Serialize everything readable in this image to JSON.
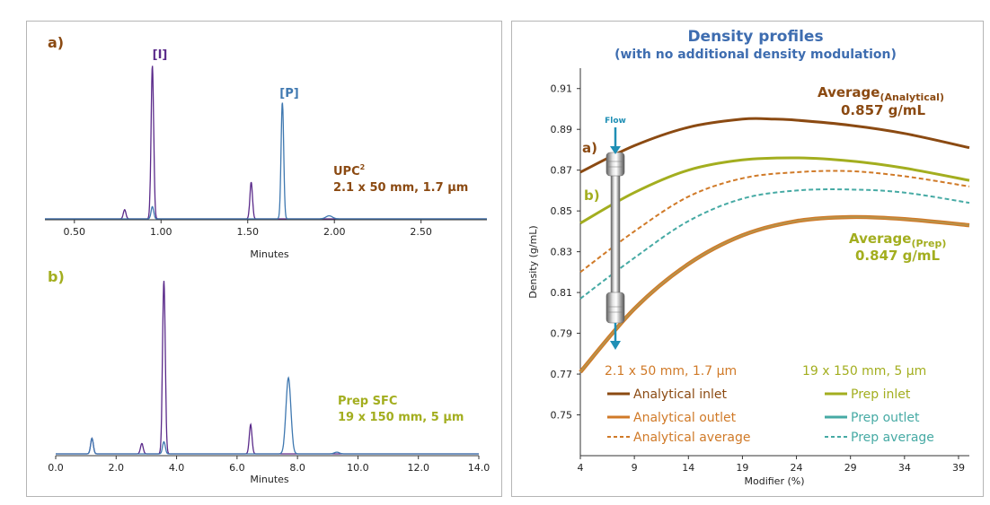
{
  "colors": {
    "prep_green": "#a3ae1f",
    "analytical_brown": "#8b4a12",
    "analytical_orange": "#d07a28",
    "prep_teal": "#46aaa4",
    "trace_purple": "#5a2a8a",
    "trace_blue": "#3f78b0",
    "title_blue": "#3e6db0"
  },
  "left": {
    "a": {
      "panel_label": "a)",
      "peak_I_label": "[I]",
      "peak_P_label": "[P]",
      "system_label": "UPC",
      "system_superscript": "2",
      "column_label": "2.1 x 50 mm, 1.7 µm",
      "xlabel": "Minutes",
      "x_ticks": [
        "0.50",
        "1.00",
        "1.50",
        "2.00",
        "2.50"
      ]
    },
    "b": {
      "panel_label": "b)",
      "system_label": "Prep SFC",
      "column_label": "19 x 150 mm, 5 µm",
      "xlabel": "Minutes",
      "x_ticks": [
        "0.0",
        "2.0",
        "4.0",
        "6.0",
        "8.0",
        "10.0",
        "12.0",
        "14.0"
      ]
    }
  },
  "right": {
    "flow_label": "Flow",
    "label_a": "a)",
    "label_b": "b)",
    "avg_analytical_prefix": "Average",
    "avg_analytical_subscript": "(Analytical)",
    "avg_analytical_value": "0.857 g/mL",
    "avg_prep_prefix": "Average",
    "avg_prep_subscript": "(Prep)",
    "avg_prep_value": "0.847 g/mL",
    "legend_header_analytical": "2.1 x 50 mm, 1.7 µm",
    "legend_header_prep": "19 x 150 mm, 5 µm"
  },
  "chart_data": [
    {
      "type": "line",
      "title": "",
      "xlabel": "Minutes",
      "ylabel": "",
      "xlim": [
        0.33,
        2.88
      ],
      "series": [
        {
          "name": "[I]",
          "peaks": [
            [
              0.79,
              0.06
            ],
            [
              0.95,
              1.0
            ],
            [
              1.52,
              0.24
            ]
          ]
        },
        {
          "name": "[P]",
          "peaks": [
            [
              0.95,
              0.08
            ],
            [
              1.7,
              0.76
            ],
            [
              1.97,
              0.02
            ]
          ]
        }
      ]
    },
    {
      "type": "line",
      "title": "",
      "xlabel": "Minutes",
      "ylabel": "",
      "xlim": [
        0,
        14
      ],
      "series": [
        {
          "name": "[I]",
          "peaks": [
            [
              1.2,
              0.09
            ],
            [
              2.85,
              0.06
            ],
            [
              3.58,
              1.0
            ],
            [
              6.45,
              0.17
            ]
          ]
        },
        {
          "name": "[P]",
          "peaks": [
            [
              1.2,
              0.09
            ],
            [
              3.58,
              0.07
            ],
            [
              7.7,
              0.44
            ],
            [
              9.3,
              0.01
            ]
          ]
        }
      ]
    },
    {
      "type": "line",
      "title": "Density profiles",
      "subtitle": "(with no additional density modulation)",
      "xlabel": "Modifier (%)",
      "ylabel": "Density (g/mL)",
      "xlim": [
        4,
        40
      ],
      "ylim": [
        0.73,
        0.92
      ],
      "x_ticks": [
        4,
        9,
        14,
        19,
        24,
        29,
        34,
        39
      ],
      "y_ticks": [
        0.75,
        0.77,
        0.79,
        0.81,
        0.83,
        0.85,
        0.87,
        0.89,
        0.91
      ],
      "legend": "bottom",
      "series": [
        {
          "name": "Analytical inlet",
          "style": "solid",
          "x": [
            4,
            9,
            14,
            19,
            22,
            24,
            29,
            34,
            40
          ],
          "y": [
            0.869,
            0.882,
            0.891,
            0.895,
            0.895,
            0.8945,
            0.892,
            0.888,
            0.881
          ]
        },
        {
          "name": "Prep inlet",
          "style": "solid",
          "x": [
            4,
            9,
            14,
            19,
            24,
            29,
            34,
            40
          ],
          "y": [
            0.844,
            0.859,
            0.87,
            0.875,
            0.876,
            0.8745,
            0.871,
            0.865
          ]
        },
        {
          "name": "Analytical average",
          "style": "dashed",
          "x": [
            4,
            9,
            14,
            19,
            24,
            29,
            34,
            40
          ],
          "y": [
            0.82,
            0.84,
            0.857,
            0.866,
            0.869,
            0.8695,
            0.867,
            0.862
          ]
        },
        {
          "name": "Prep average",
          "style": "dashed",
          "x": [
            4,
            9,
            14,
            19,
            24,
            29,
            34,
            40
          ],
          "y": [
            0.807,
            0.827,
            0.845,
            0.856,
            0.86,
            0.8605,
            0.859,
            0.854
          ]
        },
        {
          "name": "Analytical outlet",
          "style": "solid",
          "x": [
            4,
            9,
            14,
            19,
            24,
            29,
            34,
            40
          ],
          "y": [
            0.771,
            0.802,
            0.824,
            0.838,
            0.845,
            0.847,
            0.846,
            0.843
          ]
        },
        {
          "name": "Prep outlet",
          "style": "solid",
          "x": [
            4,
            9,
            14,
            19,
            24,
            29,
            34,
            40
          ],
          "y": [
            0.771,
            0.802,
            0.824,
            0.838,
            0.845,
            0.847,
            0.846,
            0.843
          ]
        }
      ]
    }
  ]
}
